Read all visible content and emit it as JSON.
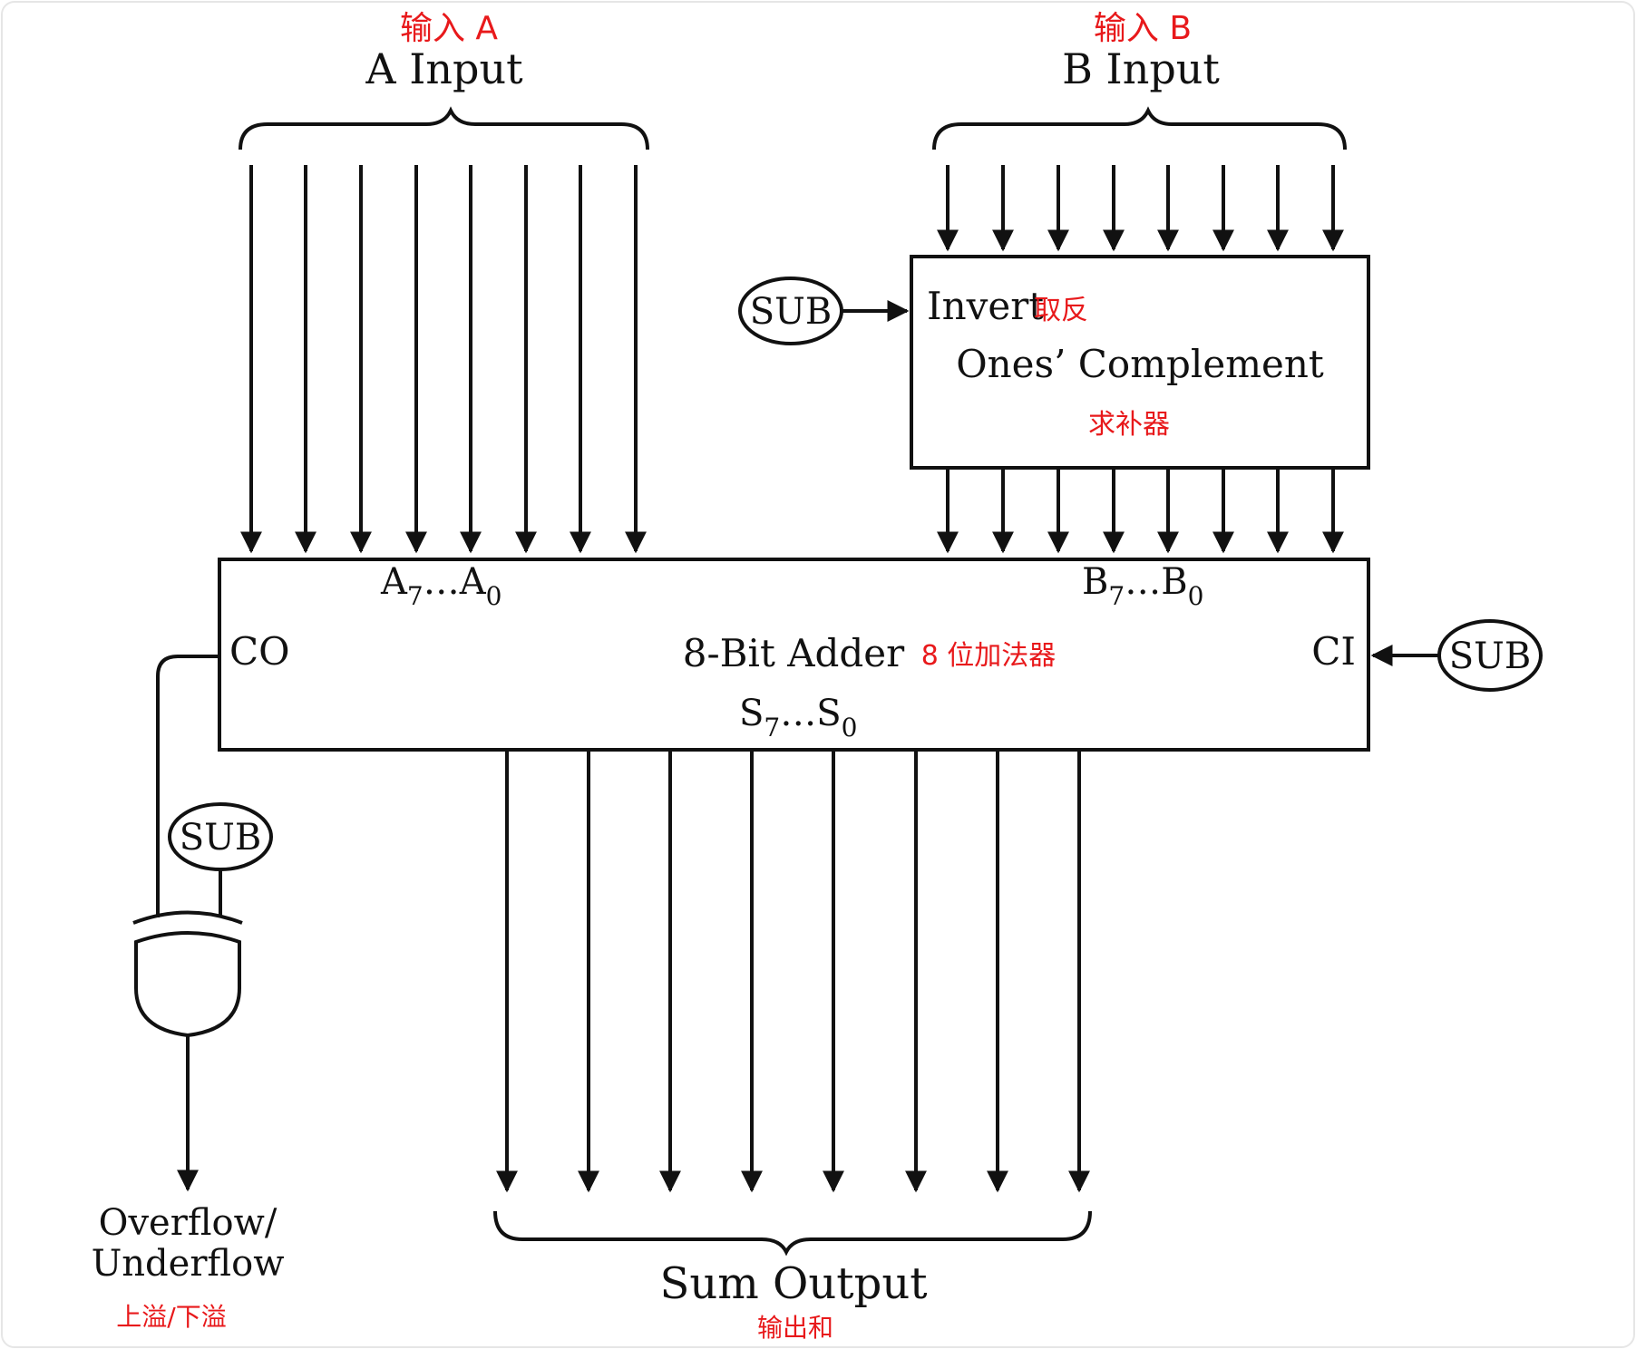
{
  "labels": {
    "a_input_cn": "输入 A",
    "a_input": "A Input",
    "b_input_cn": "输入 B",
    "b_input": "B Input",
    "invert": "Invert",
    "invert_cn": "取反",
    "ones_complement": "Ones’ Complement",
    "ones_complement_cn": "求补器",
    "sub": "SUB",
    "a_bits_main": "A",
    "a_bits_sub1": "7",
    "a_bits_mid": "…A",
    "a_bits_sub2": "0",
    "b_bits_main": "B",
    "b_bits_sub1": "7",
    "b_bits_mid": "…B",
    "b_bits_sub2": "0",
    "co": "CO",
    "ci": "CI",
    "adder": "8-Bit Adder",
    "adder_cn": "8 位加法器",
    "s_bits_main": "S",
    "s_bits_sub1": "7",
    "s_bits_mid": "…S",
    "s_bits_sub2": "0",
    "overflow_line1": "Overflow/",
    "overflow_line2": "Underflow",
    "overflow_cn": "上溢/下溢",
    "sum_output": "Sum Output",
    "sum_output_cn": "输出和"
  },
  "colors": {
    "line": "#111111",
    "chinese_annotation": "#e8191b",
    "background": "#ffffff"
  }
}
